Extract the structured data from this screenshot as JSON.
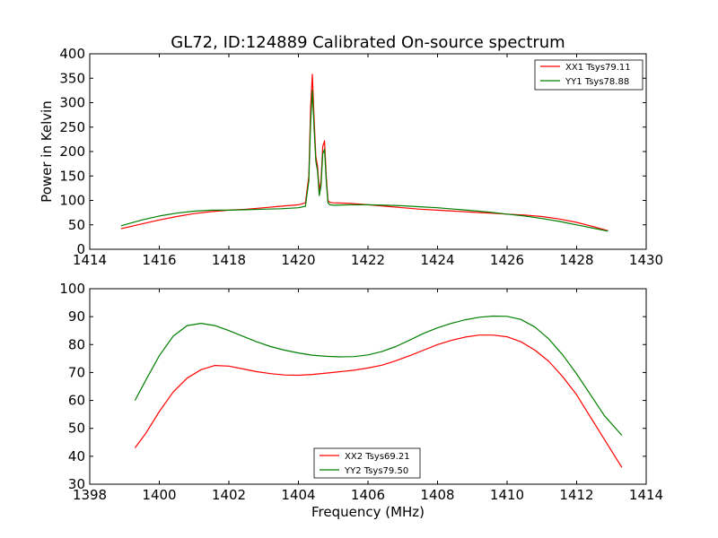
{
  "figure": {
    "title": "GL72, ID:124889 Calibrated On-source spectrum"
  },
  "chart_data": [
    {
      "type": "line",
      "title": "GL72, ID:124889 Calibrated On-source spectrum",
      "xlabel": "",
      "ylabel": "Power in Kelvin",
      "xlim": [
        1414,
        1430
      ],
      "ylim": [
        0,
        400
      ],
      "xticks": [
        1414,
        1416,
        1418,
        1420,
        1422,
        1424,
        1426,
        1428,
        1430
      ],
      "yticks": [
        0,
        50,
        100,
        150,
        200,
        250,
        300,
        350,
        400
      ],
      "grid": false,
      "legend_position": "top-right",
      "series": [
        {
          "name": "XX1 Tsys79.11",
          "color": "#ff0000",
          "x": [
            1414.9,
            1415.5,
            1416.0,
            1416.5,
            1417.0,
            1417.5,
            1418.0,
            1418.5,
            1419.0,
            1419.5,
            1420.0,
            1420.2,
            1420.3,
            1420.35,
            1420.4,
            1420.45,
            1420.5,
            1420.55,
            1420.6,
            1420.65,
            1420.7,
            1420.75,
            1420.8,
            1420.85,
            1420.9,
            1421.0,
            1421.5,
            1422.0,
            1422.5,
            1423.0,
            1423.5,
            1424.0,
            1424.5,
            1425.0,
            1425.5,
            1426.0,
            1426.5,
            1427.0,
            1427.5,
            1428.0,
            1428.5,
            1428.9
          ],
          "values": [
            42,
            52,
            60,
            67,
            73,
            77,
            80,
            82,
            85,
            88,
            91,
            95,
            150,
            290,
            358,
            270,
            190,
            170,
            120,
            140,
            210,
            222,
            150,
            100,
            96,
            95,
            94,
            91,
            88,
            85,
            82,
            80,
            78,
            76,
            74,
            72,
            70,
            67,
            62,
            55,
            46,
            38
          ]
        },
        {
          "name": "YY1 Tsys78.88",
          "color": "#007f00",
          "x": [
            1414.9,
            1415.5,
            1416.0,
            1416.5,
            1417.0,
            1417.5,
            1418.0,
            1418.5,
            1419.0,
            1419.5,
            1420.0,
            1420.2,
            1420.3,
            1420.35,
            1420.4,
            1420.45,
            1420.5,
            1420.55,
            1420.6,
            1420.65,
            1420.7,
            1420.75,
            1420.8,
            1420.85,
            1420.9,
            1421.0,
            1421.5,
            1422.0,
            1422.5,
            1423.0,
            1423.5,
            1424.0,
            1424.5,
            1425.0,
            1425.5,
            1426.0,
            1426.5,
            1427.0,
            1427.5,
            1428.0,
            1428.5,
            1428.9
          ],
          "values": [
            48,
            60,
            68,
            74,
            78,
            80,
            80,
            81,
            82,
            83,
            85,
            88,
            140,
            260,
            325,
            250,
            180,
            160,
            110,
            130,
            195,
            205,
            140,
            95,
            91,
            90,
            91,
            91,
            90,
            89,
            87,
            85,
            82,
            79,
            76,
            72,
            68,
            63,
            57,
            50,
            43,
            37
          ]
        }
      ]
    },
    {
      "type": "line",
      "title": "",
      "xlabel": "Frequency (MHz)",
      "ylabel": "",
      "xlim": [
        1398,
        1414
      ],
      "ylim": [
        30,
        100
      ],
      "xticks": [
        1398,
        1400,
        1402,
        1404,
        1406,
        1408,
        1410,
        1412,
        1414
      ],
      "yticks": [
        30,
        40,
        50,
        60,
        70,
        80,
        90,
        100
      ],
      "grid": false,
      "legend_position": "bottom-center",
      "series": [
        {
          "name": "XX2 Tsys69.21",
          "color": "#ff0000",
          "x": [
            1399.3,
            1399.6,
            1400.0,
            1400.4,
            1400.8,
            1401.2,
            1401.6,
            1402.0,
            1402.4,
            1402.8,
            1403.2,
            1403.6,
            1404.0,
            1404.4,
            1404.8,
            1405.2,
            1405.6,
            1406.0,
            1406.4,
            1406.8,
            1407.2,
            1407.6,
            1408.0,
            1408.4,
            1408.8,
            1409.2,
            1409.6,
            1410.0,
            1410.4,
            1410.8,
            1411.2,
            1411.6,
            1412.0,
            1412.4,
            1412.8,
            1413.3
          ],
          "values": [
            43,
            48,
            56,
            63,
            68,
            71,
            72.5,
            72.3,
            71.3,
            70.3,
            69.6,
            69.1,
            69.0,
            69.3,
            69.8,
            70.3,
            70.8,
            71.6,
            72.6,
            74.2,
            76.0,
            78.0,
            80.0,
            81.5,
            82.7,
            83.4,
            83.4,
            82.8,
            81.0,
            78.0,
            74.0,
            68.5,
            62.0,
            54.0,
            46.0,
            36.0
          ]
        },
        {
          "name": "YY2 Tsys79.50",
          "color": "#007f00",
          "x": [
            1399.3,
            1399.6,
            1400.0,
            1400.4,
            1400.8,
            1401.2,
            1401.6,
            1402.0,
            1402.4,
            1402.8,
            1403.2,
            1403.6,
            1404.0,
            1404.4,
            1404.8,
            1405.2,
            1405.6,
            1406.0,
            1406.4,
            1406.8,
            1407.2,
            1407.6,
            1408.0,
            1408.4,
            1408.8,
            1409.2,
            1409.6,
            1410.0,
            1410.4,
            1410.8,
            1411.2,
            1411.6,
            1412.0,
            1412.4,
            1412.8,
            1413.3
          ],
          "values": [
            60,
            67,
            76,
            83,
            86.8,
            87.6,
            86.8,
            85.0,
            83.0,
            81.0,
            79.3,
            78.0,
            77.0,
            76.2,
            75.8,
            75.6,
            75.7,
            76.3,
            77.5,
            79.3,
            81.6,
            84.0,
            86.0,
            87.6,
            88.9,
            89.8,
            90.2,
            90.1,
            89.0,
            86.3,
            82.0,
            76.3,
            69.5,
            62.0,
            54.5,
            47.5
          ]
        }
      ]
    }
  ]
}
